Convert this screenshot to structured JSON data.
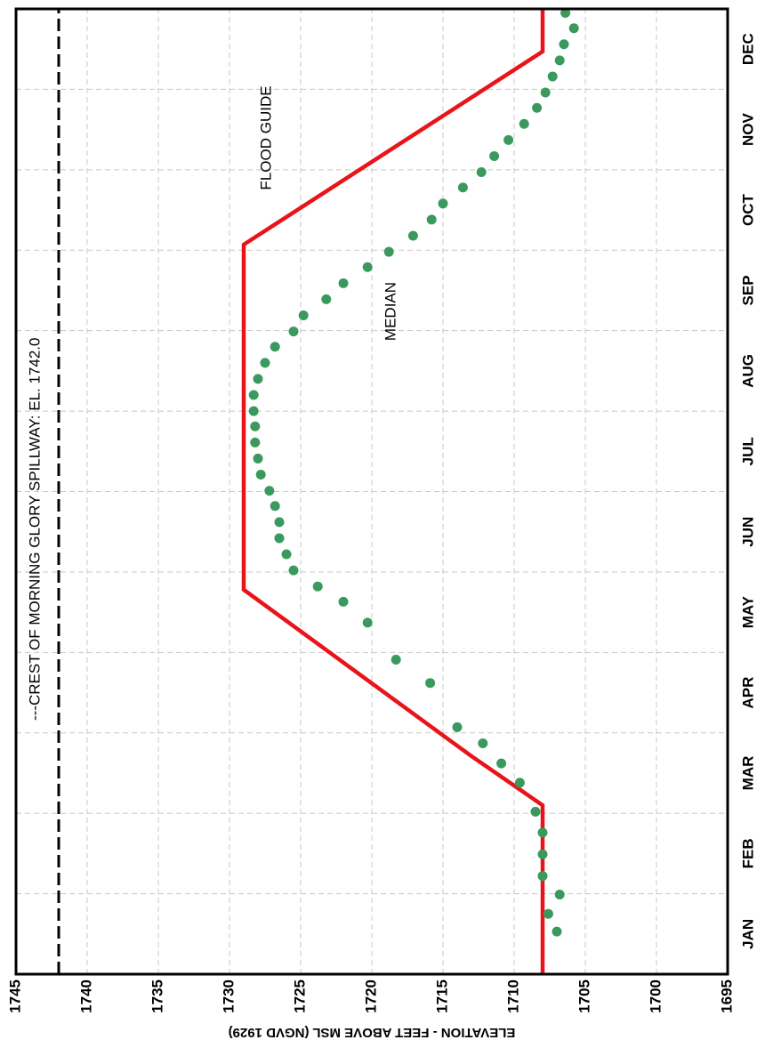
{
  "chart_data": {
    "type": "line",
    "y_label": "ELEVATION - FEET ABOVE MSL (NGVD 1929)",
    "categories": [
      "JAN",
      "FEB",
      "MAR",
      "APR",
      "MAY",
      "JUN",
      "JUL",
      "AUG",
      "SEP",
      "OCT",
      "NOV",
      "DEC"
    ],
    "xlim": [
      0,
      12
    ],
    "ylim": [
      1695,
      1745
    ],
    "yticks": [
      1695,
      1700,
      1705,
      1710,
      1715,
      1720,
      1725,
      1730,
      1735,
      1740,
      1745
    ],
    "grid": true,
    "reference_line": {
      "value": 1742,
      "label": "---CREST OF MORNING GLORY SPILLWAY: EL. 1742.0",
      "color": "#000000"
    },
    "series": [
      {
        "name": "FLOOD GUIDE",
        "style": "line",
        "color": "#e8141a",
        "x": [
          0,
          2.1,
          2.71,
          4.78,
          9.07,
          11.47,
          12
        ],
        "values": [
          1708,
          1708,
          1713,
          1729,
          1729,
          1708,
          1708
        ]
      },
      {
        "name": "MEDIAN",
        "style": "markers",
        "color": "#3a9a5e",
        "x": [
          0.53,
          0.75,
          0.99,
          1.22,
          1.49,
          1.76,
          2.02,
          2.38,
          2.62,
          2.87,
          3.07,
          3.62,
          3.91,
          4.37,
          4.63,
          4.82,
          5.02,
          5.22,
          5.42,
          5.62,
          5.82,
          6.01,
          6.21,
          6.41,
          6.61,
          6.81,
          7.0,
          7.2,
          7.4,
          7.6,
          7.8,
          7.99,
          8.19,
          8.39,
          8.59,
          8.79,
          8.98,
          9.18,
          9.38,
          9.58,
          9.78,
          9.97,
          10.17,
          10.37,
          10.57,
          10.77,
          10.96,
          11.16,
          11.36,
          11.56,
          11.76,
          11.95
        ],
        "values": [
          1707.0,
          1707.6,
          1706.8,
          1708,
          1708,
          1708,
          1708.5,
          1709.6,
          1710.9,
          1712.2,
          1714.0,
          1715.9,
          1718.3,
          1720.3,
          1722,
          1723.8,
          1725.5,
          1726,
          1726.5,
          1726.5,
          1726.8,
          1727.2,
          1727.8,
          1728,
          1728.2,
          1728.2,
          1728.3,
          1728.3,
          1728,
          1727.5,
          1726.8,
          1725.5,
          1724.8,
          1723.2,
          1722,
          1720.3,
          1718.8,
          1717.1,
          1715.8,
          1715,
          1713.6,
          1712.3,
          1711.4,
          1710.4,
          1709.3,
          1708.4,
          1707.8,
          1707.3,
          1706.8,
          1706.5,
          1705.8,
          1706.4
        ]
      }
    ]
  }
}
